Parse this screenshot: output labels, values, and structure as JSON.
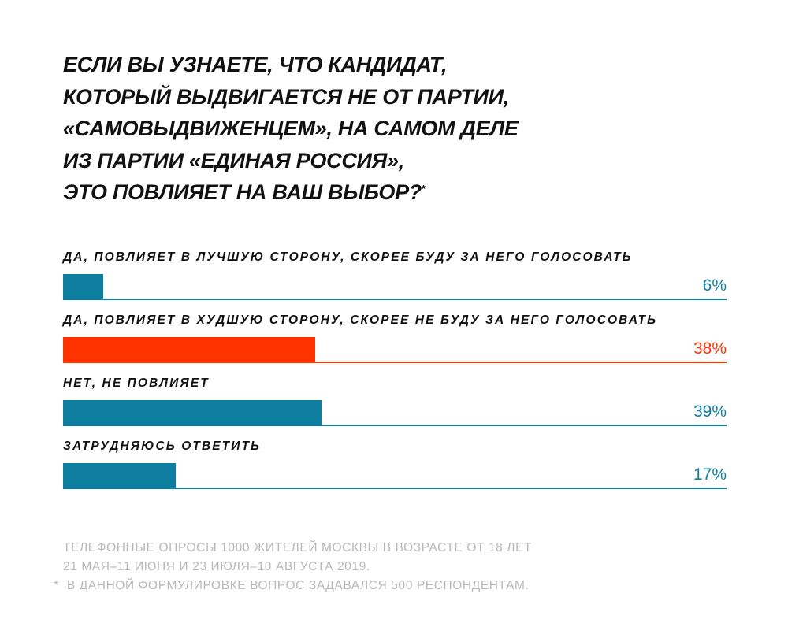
{
  "colors": {
    "blue": "#0e7fa0",
    "red": "#ff3300",
    "text": "#111111",
    "note": "#b8b8b8"
  },
  "title_lines": [
    "ЕСЛИ ВЫ УЗНАЕТЕ, ЧТО КАНДИДАТ,",
    "КОТОРЫЙ ВЫДВИГАЕТСЯ НЕ ОТ ПАРТИИ,",
    "«САМОВЫДВИЖЕНЦЕМ», НА САМОМ ДЕЛЕ",
    "ИЗ ПАРТИИ «ЕДИНАЯ РОССИЯ»,",
    "ЭТО ПОВЛИЯЕТ НА ВАШ ВЫБОР?"
  ],
  "title_mark": "*",
  "chart_data": {
    "type": "bar",
    "orientation": "horizontal",
    "unit": "%",
    "xlim": [
      0,
      100
    ],
    "grid": false,
    "categories": [
      "ДА, ПОВЛИЯЕТ В ЛУЧШУЮ СТОРОНУ, СКОРЕЕ БУДУ ЗА НЕГО ГОЛОСОВАТЬ",
      "ДА, ПОВЛИЯЕТ В ХУДШУЮ СТОРОНУ, СКОРЕЕ НЕ БУДУ ЗА НЕГО ГОЛОСОВАТЬ",
      "НЕТ, НЕ ПОВЛИЯЕТ",
      "ЗАТРУДНЯЮСЬ ОТВЕТИТЬ"
    ],
    "values": [
      6,
      38,
      39,
      17
    ],
    "labels": [
      "6%",
      "38%",
      "39%",
      "17%"
    ],
    "colors": [
      "#0e7fa0",
      "#ff3300",
      "#0e7fa0",
      "#0e7fa0"
    ]
  },
  "notes": {
    "line1": "ТЕЛЕФОННЫЕ ОПРОСЫ 1000 ЖИТЕЛЕЙ МОСКВЫ В ВОЗРАСТЕ ОТ 18 ЛЕТ",
    "line2": "21 МАЯ–11 ИЮНЯ И 23 ИЮЛЯ–10 АВГУСТА 2019.",
    "footnote_mark": "*",
    "footnote": " В ДАННОЙ ФОРМУЛИРОВКЕ ВОПРОС ЗАДАВАЛСЯ 500 РЕСПОНДЕНТАМ."
  }
}
